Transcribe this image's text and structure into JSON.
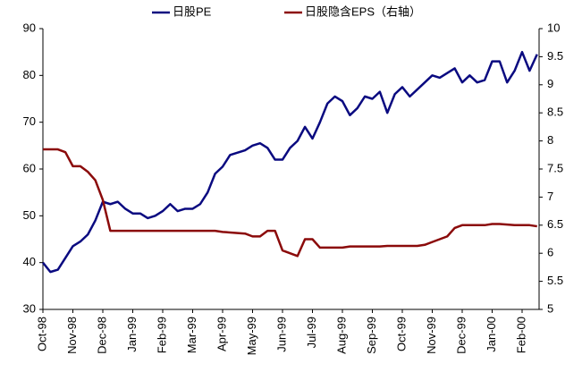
{
  "chart_data": {
    "type": "line",
    "legend": "top",
    "categories": [
      "Oct-98",
      null,
      null,
      null,
      "Nov-98",
      null,
      null,
      null,
      "Dec-98",
      null,
      null,
      null,
      "Jan-99",
      null,
      null,
      null,
      "Feb-99",
      null,
      null,
      null,
      "Mar-99",
      null,
      null,
      null,
      "Apr-99",
      null,
      null,
      null,
      "May-99",
      null,
      null,
      null,
      "Jun-99",
      null,
      null,
      null,
      "Jul-99",
      null,
      null,
      null,
      "Aug-99",
      null,
      null,
      null,
      "Sep-99",
      null,
      null,
      null,
      "Oct-99",
      null,
      null,
      null,
      "Nov-99",
      null,
      null,
      null,
      "Dec-99",
      null,
      null,
      null,
      "Jan-00",
      null,
      null,
      null,
      "Feb-00",
      null,
      null
    ],
    "series": [
      {
        "name": "日股PE",
        "color": "#0a0a80",
        "values": [
          40,
          38,
          38.5,
          41,
          43.5,
          44.5,
          46,
          49,
          53,
          52.5,
          53,
          51.5,
          50.5,
          50.5,
          49.5,
          50,
          51,
          52.5,
          51,
          51.5,
          51.5,
          52.5,
          55,
          59,
          60.5,
          63,
          63.5,
          64,
          65,
          65.5,
          64.5,
          62,
          62,
          64.5,
          66,
          69,
          66.5,
          70,
          74,
          75.5,
          74.5,
          71.5,
          73,
          75.5,
          75,
          76.5,
          72,
          76,
          77.5,
          75.5,
          77,
          78.5,
          80,
          79.5,
          80.5,
          81.5,
          78.5,
          80,
          78.5,
          79,
          83,
          83,
          78.5,
          81,
          85,
          81,
          84.5
        ]
      },
      {
        "name": "日股隐含EPS（右轴）",
        "color": "#8b0a0a",
        "axis": "y2",
        "values": [
          7.85,
          7.85,
          7.85,
          7.8,
          7.55,
          7.55,
          7.45,
          7.3,
          6.95,
          6.4,
          6.4,
          6.4,
          6.4,
          6.4,
          6.4,
          6.4,
          6.4,
          6.4,
          6.4,
          6.4,
          6.4,
          6.4,
          6.4,
          6.4,
          6.38,
          6.37,
          6.36,
          6.35,
          6.3,
          6.3,
          6.4,
          6.4,
          6.05,
          6.0,
          5.95,
          6.25,
          6.25,
          6.1,
          6.1,
          6.1,
          6.1,
          6.12,
          6.12,
          6.12,
          6.12,
          6.12,
          6.13,
          6.13,
          6.13,
          6.13,
          6.13,
          6.15,
          6.2,
          6.25,
          6.3,
          6.45,
          6.5,
          6.5,
          6.5,
          6.5,
          6.52,
          6.52,
          6.51,
          6.5,
          6.5,
          6.5,
          6.48
        ]
      }
    ],
    "ylim": [
      30,
      90
    ],
    "yticks": [
      30,
      40,
      50,
      60,
      70,
      80,
      90
    ],
    "y2lim": [
      5,
      10
    ],
    "y2ticks": [
      5,
      5.5,
      6,
      6.5,
      7,
      7.5,
      8,
      8.5,
      9,
      9.5,
      10
    ]
  }
}
